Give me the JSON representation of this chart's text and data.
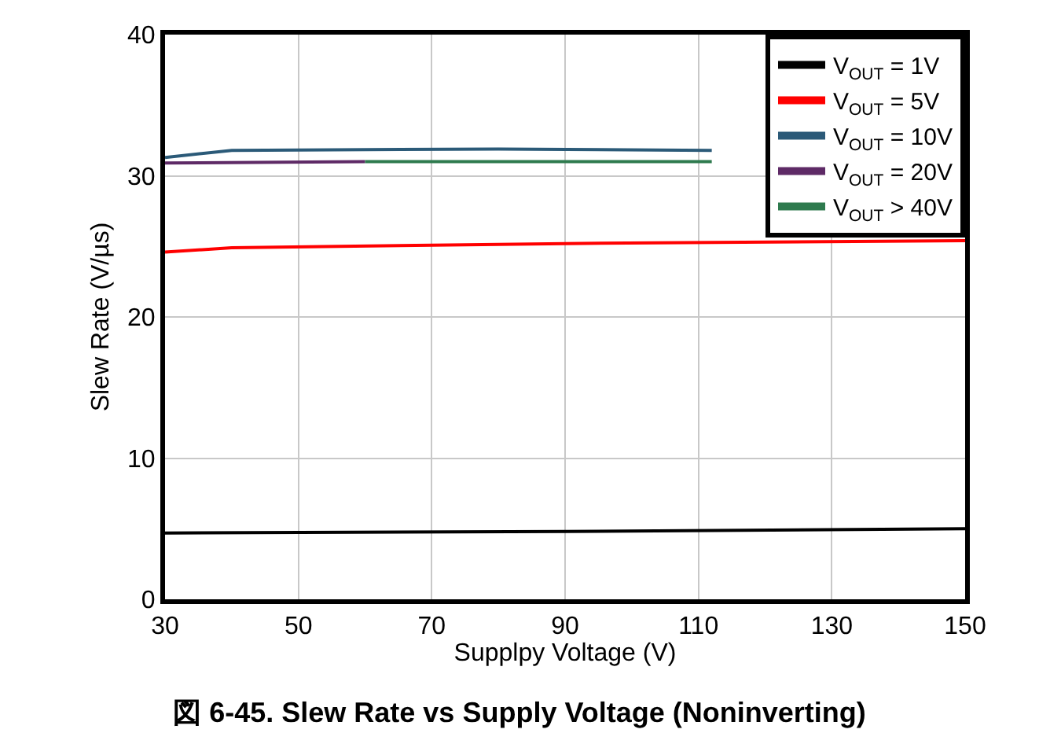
{
  "chart_data": {
    "type": "line",
    "title": "図 6-45. Slew Rate vs Supply Voltage (Noninverting)",
    "xlabel": "Supplpy Voltage (V)",
    "ylabel": "Slew Rate (V/µs)",
    "xlim": [
      30,
      150
    ],
    "xticks": [
      30,
      50,
      70,
      90,
      110,
      130,
      150
    ],
    "ylim": [
      0,
      40
    ],
    "yticks": [
      0,
      10,
      20,
      30,
      40
    ],
    "grid": true,
    "legend": "top right",
    "line_style": "solid",
    "series": [
      {
        "name": "V$_{OUT}$ = 1V",
        "color": "#000000",
        "x": [
          30,
          90,
          150
        ],
        "values": [
          4.7,
          4.8,
          5.0
        ]
      },
      {
        "name": "V$_{OUT}$ = 5V",
        "color": "#ff0000",
        "x": [
          30,
          40,
          90,
          150
        ],
        "values": [
          24.6,
          24.9,
          25.2,
          25.4
        ]
      },
      {
        "name": "V$_{OUT}$ = 10V",
        "color": "#2b5a78",
        "x": [
          30,
          40,
          80,
          112
        ],
        "values": [
          31.3,
          31.8,
          31.9,
          31.8
        ]
      },
      {
        "name": "V$_{OUT}$ = 20V",
        "color": "#5e2a66",
        "x": [
          30,
          60
        ],
        "values": [
          30.9,
          31.0
        ]
      },
      {
        "name": "V$_{OUT}$ > 40V",
        "color": "#2e7a4e",
        "x": [
          60,
          112
        ],
        "values": [
          31.0,
          31.0
        ]
      }
    ]
  }
}
